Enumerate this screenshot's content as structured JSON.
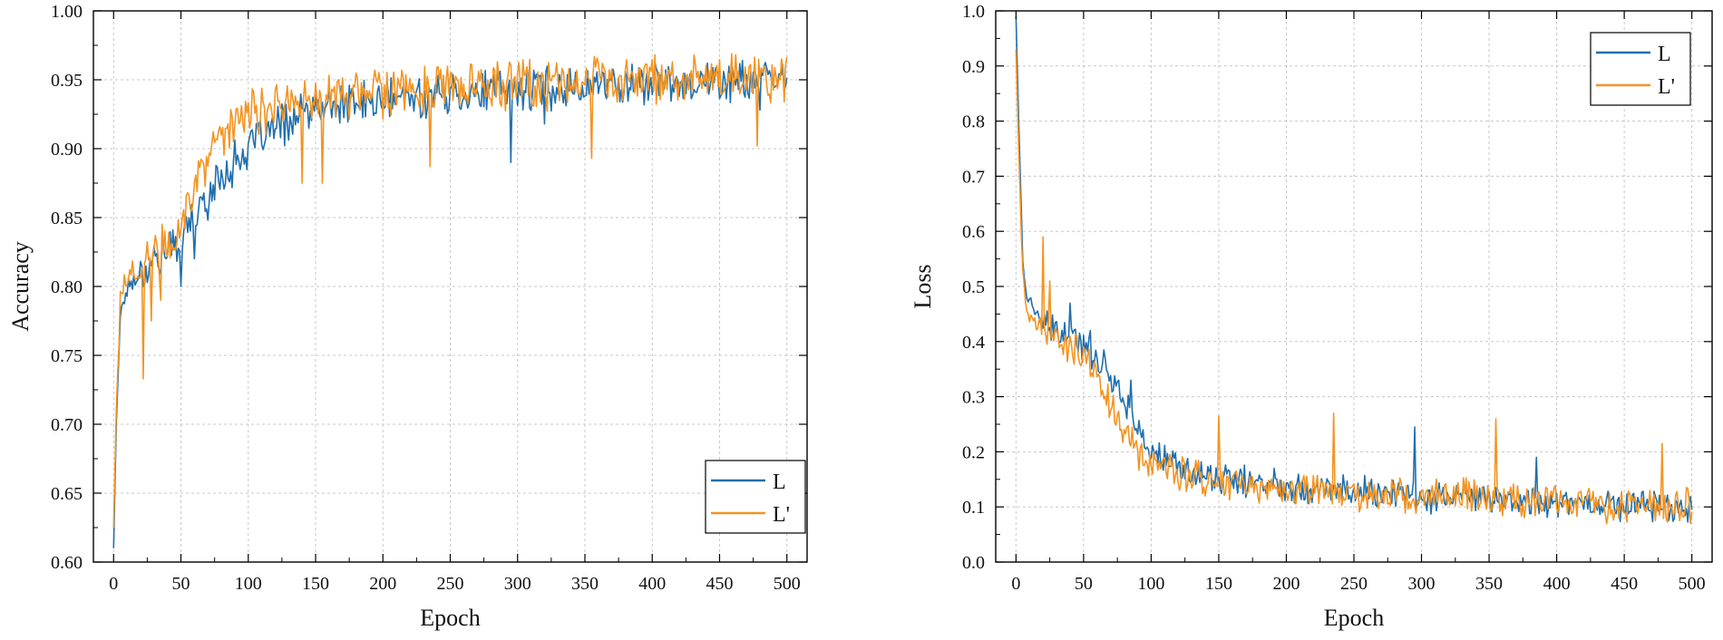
{
  "chart_data": [
    {
      "type": "line",
      "xlabel": "Epoch",
      "ylabel": "Accuracy",
      "xlim": [
        -15,
        515
      ],
      "ylim": [
        0.6,
        1.0
      ],
      "xticks": [
        0,
        50,
        100,
        150,
        200,
        250,
        300,
        350,
        400,
        450,
        500
      ],
      "xtick_labels": [
        "0",
        "50",
        "100",
        "150",
        "200",
        "250",
        "300",
        "350",
        "400",
        "450",
        "500"
      ],
      "yticks": [
        0.6,
        0.65,
        0.7,
        0.75,
        0.8,
        0.85,
        0.9,
        0.95,
        1.0
      ],
      "ytick_labels": [
        "0.60",
        "0.65",
        "0.70",
        "0.75",
        "0.80",
        "0.85",
        "0.90",
        "0.95",
        "1.00"
      ],
      "grid": true,
      "legend_position": "bottom-right",
      "legend": [
        "L",
        "L'"
      ],
      "series": [
        {
          "name": "L",
          "color": "#1f6fae",
          "keypoints": [
            [
              0,
              0.61
            ],
            [
              2,
              0.7
            ],
            [
              5,
              0.78
            ],
            [
              10,
              0.8
            ],
            [
              20,
              0.81
            ],
            [
              30,
              0.82
            ],
            [
              40,
              0.825
            ],
            [
              50,
              0.835
            ],
            [
              60,
              0.85
            ],
            [
              70,
              0.865
            ],
            [
              80,
              0.88
            ],
            [
              90,
              0.89
            ],
            [
              100,
              0.9
            ],
            [
              120,
              0.915
            ],
            [
              140,
              0.925
            ],
            [
              160,
              0.93
            ],
            [
              200,
              0.935
            ],
            [
              250,
              0.94
            ],
            [
              300,
              0.943
            ],
            [
              350,
              0.946
            ],
            [
              400,
              0.948
            ],
            [
              450,
              0.949
            ],
            [
              500,
              0.95
            ]
          ],
          "noise": 0.012,
          "dips": [
            [
              50,
              0.8
            ],
            [
              60,
              0.82
            ],
            [
              295,
              0.89
            ],
            [
              320,
              0.918
            ],
            [
              480,
              0.928
            ]
          ]
        },
        {
          "name": "L'",
          "color": "#f39422",
          "keypoints": [
            [
              0,
              0.625
            ],
            [
              2,
              0.71
            ],
            [
              5,
              0.79
            ],
            [
              10,
              0.805
            ],
            [
              20,
              0.815
            ],
            [
              30,
              0.822
            ],
            [
              40,
              0.83
            ],
            [
              50,
              0.845
            ],
            [
              60,
              0.87
            ],
            [
              70,
              0.895
            ],
            [
              80,
              0.91
            ],
            [
              90,
              0.92
            ],
            [
              100,
              0.925
            ],
            [
              120,
              0.93
            ],
            [
              140,
              0.935
            ],
            [
              160,
              0.937
            ],
            [
              200,
              0.94
            ],
            [
              250,
              0.943
            ],
            [
              300,
              0.945
            ],
            [
              350,
              0.948
            ],
            [
              400,
              0.95
            ],
            [
              450,
              0.951
            ],
            [
              500,
              0.953
            ]
          ],
          "noise": 0.014,
          "dips": [
            [
              22,
              0.733
            ],
            [
              28,
              0.775
            ],
            [
              35,
              0.79
            ],
            [
              140,
              0.875
            ],
            [
              155,
              0.875
            ],
            [
              235,
              0.887
            ],
            [
              355,
              0.893
            ],
            [
              478,
              0.902
            ]
          ]
        }
      ]
    },
    {
      "type": "line",
      "xlabel": "Epoch",
      "ylabel": "Loss",
      "xlim": [
        -15,
        515
      ],
      "ylim": [
        0.0,
        1.0
      ],
      "xticks": [
        0,
        50,
        100,
        150,
        200,
        250,
        300,
        350,
        400,
        450,
        500
      ],
      "xtick_labels": [
        "0",
        "50",
        "100",
        "150",
        "200",
        "250",
        "300",
        "350",
        "400",
        "450",
        "500"
      ],
      "yticks": [
        0.0,
        0.1,
        0.2,
        0.3,
        0.4,
        0.5,
        0.6,
        0.7,
        0.8,
        0.9,
        1.0
      ],
      "ytick_labels": [
        "0.0",
        "0.1",
        "0.2",
        "0.3",
        "0.4",
        "0.5",
        "0.6",
        "0.7",
        "0.8",
        "0.9",
        "1.0"
      ],
      "grid": true,
      "legend_position": "top-right",
      "legend": [
        "L",
        "L'"
      ],
      "series": [
        {
          "name": "L",
          "color": "#1f6fae",
          "keypoints": [
            [
              0,
              0.99
            ],
            [
              2,
              0.8
            ],
            [
              5,
              0.55
            ],
            [
              8,
              0.48
            ],
            [
              15,
              0.45
            ],
            [
              25,
              0.42
            ],
            [
              40,
              0.41
            ],
            [
              50,
              0.39
            ],
            [
              60,
              0.37
            ],
            [
              70,
              0.34
            ],
            [
              80,
              0.3
            ],
            [
              90,
              0.24
            ],
            [
              100,
              0.2
            ],
            [
              120,
              0.17
            ],
            [
              150,
              0.15
            ],
            [
              200,
              0.14
            ],
            [
              250,
              0.13
            ],
            [
              300,
              0.12
            ],
            [
              350,
              0.115
            ],
            [
              400,
              0.11
            ],
            [
              450,
              0.105
            ],
            [
              500,
              0.1
            ]
          ],
          "noise": 0.022,
          "spikes": [
            [
              40,
              0.47
            ],
            [
              55,
              0.42
            ],
            [
              85,
              0.33
            ],
            [
              295,
              0.245
            ],
            [
              385,
              0.19
            ]
          ]
        },
        {
          "name": "L'",
          "color": "#f39422",
          "keypoints": [
            [
              0,
              0.93
            ],
            [
              2,
              0.75
            ],
            [
              5,
              0.52
            ],
            [
              8,
              0.46
            ],
            [
              15,
              0.43
            ],
            [
              25,
              0.41
            ],
            [
              40,
              0.39
            ],
            [
              50,
              0.37
            ],
            [
              60,
              0.34
            ],
            [
              70,
              0.28
            ],
            [
              80,
              0.24
            ],
            [
              90,
              0.2
            ],
            [
              100,
              0.18
            ],
            [
              120,
              0.16
            ],
            [
              150,
              0.145
            ],
            [
              200,
              0.135
            ],
            [
              250,
              0.125
            ],
            [
              300,
              0.12
            ],
            [
              350,
              0.115
            ],
            [
              400,
              0.11
            ],
            [
              450,
              0.105
            ],
            [
              500,
              0.1
            ]
          ],
          "noise": 0.025,
          "spikes": [
            [
              20,
              0.59
            ],
            [
              25,
              0.51
            ],
            [
              150,
              0.265
            ],
            [
              235,
              0.27
            ],
            [
              355,
              0.26
            ],
            [
              478,
              0.215
            ]
          ]
        }
      ]
    }
  ]
}
